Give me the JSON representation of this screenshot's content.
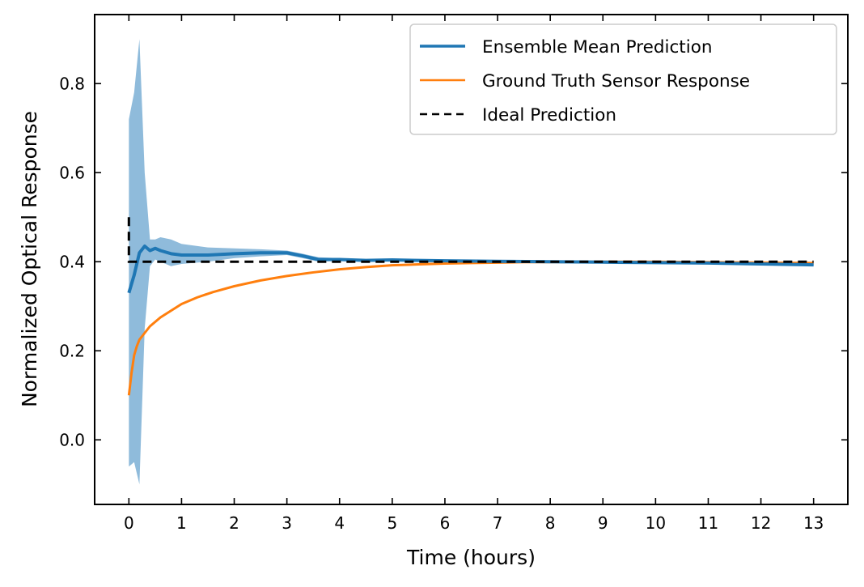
{
  "chart_data": {
    "type": "line",
    "xlabel": "Time (hours)",
    "ylabel": "Normalized Optical Response",
    "xlim": [
      -0.65,
      13.65
    ],
    "ylim": [
      -0.145,
      0.955
    ],
    "xticks": [
      0,
      1,
      2,
      3,
      4,
      5,
      6,
      7,
      8,
      9,
      10,
      11,
      12,
      13
    ],
    "xtick_labels": [
      "0",
      "1",
      "2",
      "3",
      "4",
      "5",
      "6",
      "7",
      "8",
      "9",
      "10",
      "11",
      "12",
      "13"
    ],
    "yticks": [
      0.0,
      0.2,
      0.4,
      0.6,
      0.8
    ],
    "ytick_labels": [
      "0.0",
      "0.2",
      "0.4",
      "0.6",
      "0.8"
    ],
    "grid": false,
    "legend_position": "top-right",
    "legend": [
      "Ensemble Mean Prediction",
      "Ground Truth Sensor Response",
      "Ideal Prediction"
    ],
    "series": [
      {
        "name": "Ensemble Mean Prediction",
        "color": "#1f77b4",
        "style": "solid",
        "x": [
          0,
          0.1,
          0.2,
          0.3,
          0.4,
          0.5,
          0.6,
          0.8,
          1.0,
          1.5,
          2.0,
          2.5,
          3.0,
          3.3,
          3.6,
          4.0,
          4.5,
          5.0,
          6.0,
          7.0,
          8.0,
          9.0,
          10.0,
          11.0,
          12.0,
          13.0
        ],
        "y": [
          0.33,
          0.37,
          0.42,
          0.435,
          0.425,
          0.43,
          0.425,
          0.418,
          0.415,
          0.415,
          0.418,
          0.42,
          0.42,
          0.413,
          0.405,
          0.405,
          0.403,
          0.404,
          0.402,
          0.401,
          0.4,
          0.399,
          0.398,
          0.397,
          0.395,
          0.393
        ],
        "band_upper": [
          0.72,
          0.78,
          0.9,
          0.6,
          0.45,
          0.45,
          0.455,
          0.45,
          0.44,
          0.432,
          0.43,
          0.428,
          0.425,
          0.418,
          0.41,
          0.408,
          0.406,
          0.405,
          0.404,
          0.402,
          0.401,
          0.4,
          0.399,
          0.398,
          0.397,
          0.395
        ],
        "band_lower": [
          -0.06,
          -0.05,
          -0.1,
          0.25,
          0.39,
          0.405,
          0.4,
          0.39,
          0.395,
          0.4,
          0.408,
          0.412,
          0.415,
          0.408,
          0.4,
          0.402,
          0.4,
          0.402,
          0.4,
          0.4,
          0.399,
          0.398,
          0.397,
          0.396,
          0.394,
          0.392
        ],
        "band_color": "#8fbbdb"
      },
      {
        "name": "Ground Truth Sensor Response",
        "color": "#ff7f0e",
        "style": "solid",
        "x": [
          0,
          0.05,
          0.1,
          0.15,
          0.2,
          0.3,
          0.4,
          0.5,
          0.6,
          0.8,
          1.0,
          1.3,
          1.6,
          2.0,
          2.5,
          3.0,
          3.5,
          4.0,
          4.5,
          5.0,
          5.5,
          6.0,
          6.5,
          7.0,
          7.5,
          8.0,
          9.0,
          10.0,
          11.0,
          12.0,
          13.0
        ],
        "y": [
          0.1,
          0.15,
          0.19,
          0.21,
          0.225,
          0.24,
          0.255,
          0.265,
          0.275,
          0.29,
          0.305,
          0.32,
          0.332,
          0.345,
          0.358,
          0.368,
          0.376,
          0.383,
          0.388,
          0.392,
          0.394,
          0.396,
          0.397,
          0.398,
          0.399,
          0.399,
          0.4,
          0.4,
          0.399,
          0.398,
          0.397
        ]
      },
      {
        "name": "Ideal Prediction",
        "color": "#000000",
        "style": "dashed",
        "x": [
          0,
          0,
          13
        ],
        "y": [
          0.5,
          0.4,
          0.4
        ]
      }
    ]
  }
}
